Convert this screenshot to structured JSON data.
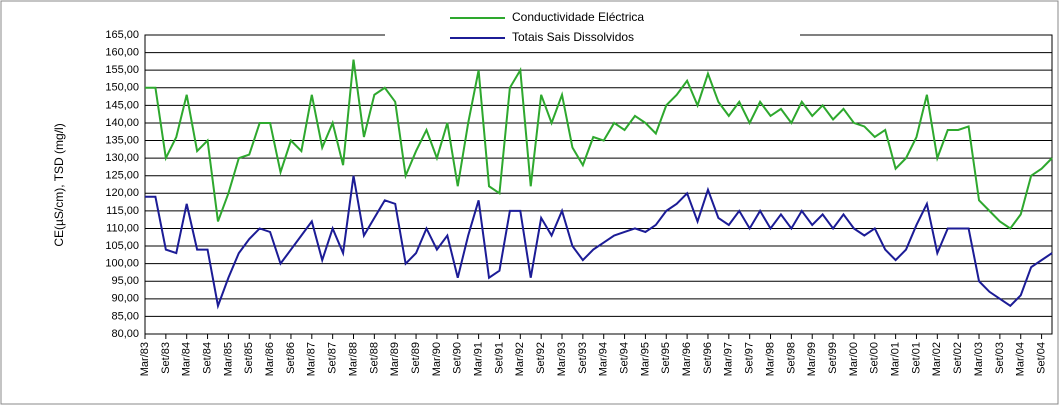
{
  "chart_data": {
    "type": "line",
    "y_label": "CE(µS/cm), TSD (mg/l)",
    "categories": [
      "Mar/83",
      null,
      "Set/83",
      null,
      "Mar/84",
      null,
      "Set/84",
      null,
      "Mar/85",
      null,
      "Set/85",
      null,
      "Mar/86",
      null,
      "Set/86",
      null,
      "Mar/87",
      null,
      "Set/87",
      null,
      "Mar/88",
      null,
      "Set/88",
      null,
      "Mar/89",
      null,
      "Set/89",
      null,
      "Mar/90",
      null,
      "Set/90",
      null,
      "Mar/91",
      null,
      "Set/91",
      null,
      "Mar/92",
      null,
      "Set/92",
      null,
      "Mar/93",
      null,
      "Set/93",
      null,
      "Mar/94",
      null,
      "Set/94",
      null,
      "Mar/95",
      null,
      "Set/95",
      null,
      "Mar/96",
      null,
      "Set/96",
      null,
      "Mar/97",
      null,
      "Set/97",
      null,
      "Mar/98",
      null,
      "Set/98",
      null,
      "Mar/99",
      null,
      "Set/99",
      null,
      "Mar/00",
      null,
      "Set/00",
      null,
      "Mar/01",
      null,
      "Set/01",
      null,
      "Mar/02",
      null,
      "Set/02",
      null,
      "Mar/03",
      null,
      "Set/03",
      null,
      "Mar/04",
      null,
      "Set/04",
      null
    ],
    "series": [
      {
        "name": "Conductividade Eléctrica",
        "color": "#2ea82e",
        "values": [
          150,
          150,
          130,
          136,
          148,
          132,
          135,
          112,
          120,
          130,
          131,
          140,
          140,
          126,
          135,
          132,
          148,
          133,
          140,
          128,
          158,
          136,
          148,
          150,
          146,
          125,
          132,
          138,
          130,
          140,
          122,
          140,
          155,
          122,
          120,
          150,
          155,
          122,
          148,
          140,
          148,
          133,
          128,
          136,
          135,
          140,
          138,
          142,
          140,
          137,
          145,
          148,
          152,
          145,
          154,
          146,
          142,
          146,
          140,
          146,
          142,
          144,
          140,
          146,
          142,
          145,
          141,
          144,
          140,
          139,
          136,
          138,
          127,
          130,
          136,
          148,
          130,
          138,
          138,
          139,
          118,
          115,
          112,
          110,
          114,
          125,
          127,
          130
        ]
      },
      {
        "name": "Totais Sais Dissolvidos",
        "color": "#1c1c96",
        "values": [
          119,
          119,
          104,
          103,
          117,
          104,
          104,
          88,
          96,
          103,
          107,
          110,
          109,
          100,
          104,
          108,
          112,
          101,
          110,
          103,
          125,
          108,
          113,
          118,
          117,
          100,
          103,
          110,
          104,
          108,
          96,
          108,
          118,
          96,
          98,
          115,
          115,
          96,
          113,
          108,
          115,
          105,
          101,
          104,
          106,
          108,
          109,
          110,
          109,
          111,
          115,
          117,
          120,
          112,
          121,
          113,
          111,
          115,
          110,
          115,
          110,
          114,
          110,
          115,
          111,
          114,
          110,
          114,
          110,
          108,
          110,
          104,
          101,
          104,
          111,
          117,
          103,
          110,
          110,
          110,
          95,
          92,
          90,
          88,
          91,
          99,
          101,
          103
        ]
      }
    ],
    "ylim": [
      80,
      165
    ],
    "yticks": [
      {
        "value": 80,
        "label": "80,00"
      },
      {
        "value": 85,
        "label": "85,00"
      },
      {
        "value": 90,
        "label": "90,00"
      },
      {
        "value": 95,
        "label": "95,00"
      },
      {
        "value": 100,
        "label": "100,00"
      },
      {
        "value": 105,
        "label": "105,00"
      },
      {
        "value": 110,
        "label": "110,00"
      },
      {
        "value": 115,
        "label": "115,00"
      },
      {
        "value": 120,
        "label": "120,00"
      },
      {
        "value": 125,
        "label": "125,00"
      },
      {
        "value": 130,
        "label": "130,00"
      },
      {
        "value": 135,
        "label": "135,00"
      },
      {
        "value": 140,
        "label": "140,00"
      },
      {
        "value": 145,
        "label": "145,00"
      },
      {
        "value": 150,
        "label": "150,00"
      },
      {
        "value": 155,
        "label": "155,00"
      },
      {
        "value": 160,
        "label": "160,00"
      },
      {
        "value": 165,
        "label": "165,00"
      }
    ],
    "grid": true
  }
}
